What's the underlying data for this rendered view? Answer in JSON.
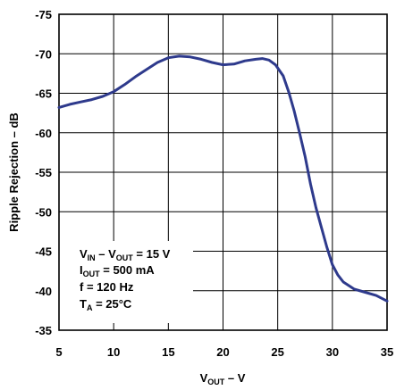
{
  "chart_data": {
    "type": "line",
    "xlabel": {
      "main": "V",
      "sub": "OUT",
      "rest": " – V"
    },
    "ylabel": "Ripple Rejection – dB",
    "xlim": [
      5,
      35
    ],
    "ylim": [
      -75,
      -35
    ],
    "y_inverted": true,
    "x_ticks": [
      5,
      10,
      15,
      20,
      25,
      30,
      35
    ],
    "y_ticks": [
      -75,
      -70,
      -65,
      -60,
      -55,
      -50,
      -45,
      -40,
      -35
    ],
    "grid": true,
    "series": [
      {
        "color": "#2e3a8c",
        "points": [
          [
            5,
            -63.2
          ],
          [
            6,
            -63.6
          ],
          [
            7,
            -63.9
          ],
          [
            8,
            -64.2
          ],
          [
            9,
            -64.6
          ],
          [
            10,
            -65.2
          ],
          [
            11,
            -66.1
          ],
          [
            12,
            -67.1
          ],
          [
            13,
            -68.0
          ],
          [
            14,
            -68.9
          ],
          [
            15,
            -69.5
          ],
          [
            16,
            -69.7
          ],
          [
            17,
            -69.6
          ],
          [
            18,
            -69.3
          ],
          [
            19,
            -68.9
          ],
          [
            20,
            -68.6
          ],
          [
            21,
            -68.7
          ],
          [
            22,
            -69.1
          ],
          [
            23,
            -69.3
          ],
          [
            23.6,
            -69.4
          ],
          [
            24.2,
            -69.2
          ],
          [
            24.8,
            -68.6
          ],
          [
            25.5,
            -67.2
          ],
          [
            26,
            -65.2
          ],
          [
            26.5,
            -62.8
          ],
          [
            27,
            -60.0
          ],
          [
            27.5,
            -57.0
          ],
          [
            28,
            -53.5
          ],
          [
            28.5,
            -50.5
          ],
          [
            29,
            -48.0
          ],
          [
            29.5,
            -45.5
          ],
          [
            30,
            -43.3
          ],
          [
            30.5,
            -42.0
          ],
          [
            31,
            -41.1
          ],
          [
            32,
            -40.2
          ],
          [
            33,
            -39.8
          ],
          [
            34,
            -39.4
          ],
          [
            35,
            -38.7
          ]
        ]
      }
    ],
    "annotations": [
      {
        "main": "V",
        "sub": "IN",
        "mid": " – V",
        "sub2": "OUT",
        "rest": " = 15 V"
      },
      {
        "main": "I",
        "sub": "OUT",
        "rest": " = 500 mA"
      },
      {
        "main": "f = 120 Hz"
      },
      {
        "main": "T",
        "sub": "A",
        "rest": " = 25°C"
      }
    ]
  }
}
